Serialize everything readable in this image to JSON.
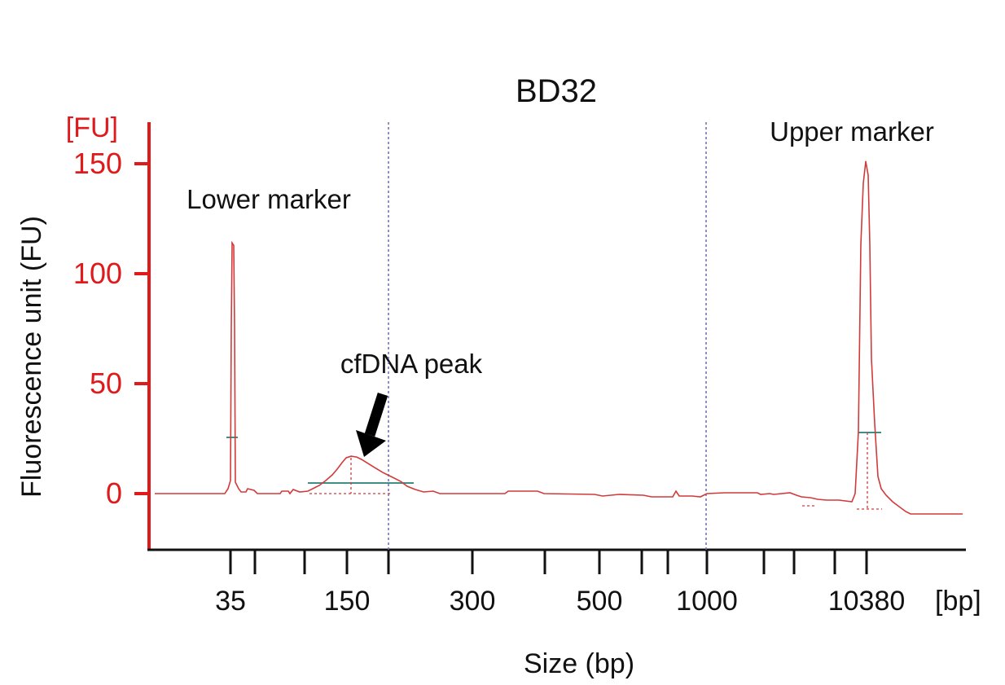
{
  "chart_data": {
    "type": "line",
    "title": "BD32",
    "ylabel": "Fluorescence unit (FU)",
    "xlabel": "Size (bp)",
    "y_unit": "[FU]",
    "x_unit": "[bp]",
    "ylim": [
      -23,
      163
    ],
    "y_ticks": [
      0,
      50,
      100,
      150
    ],
    "x_tick_labels": [
      "35",
      "150",
      "300",
      "500",
      "1000",
      "10380"
    ],
    "annotations": [
      "Lower marker",
      "cfDNA peak",
      "Upper marker"
    ],
    "series": [
      {
        "x": [
          "35",
          "150",
          "10380"
        ],
        "values": [
          114,
          17,
          151
        ]
      }
    ],
    "peak_sizes_bp": {
      "lower_marker": 35,
      "cfdna_peak": 150,
      "upper_marker": 10380
    },
    "grid": false,
    "colors": {
      "trace": "#d23a3a",
      "axis": "#e0191b",
      "dashed": "#6b6bb5",
      "baseline_marks": "#3f8f87"
    }
  }
}
